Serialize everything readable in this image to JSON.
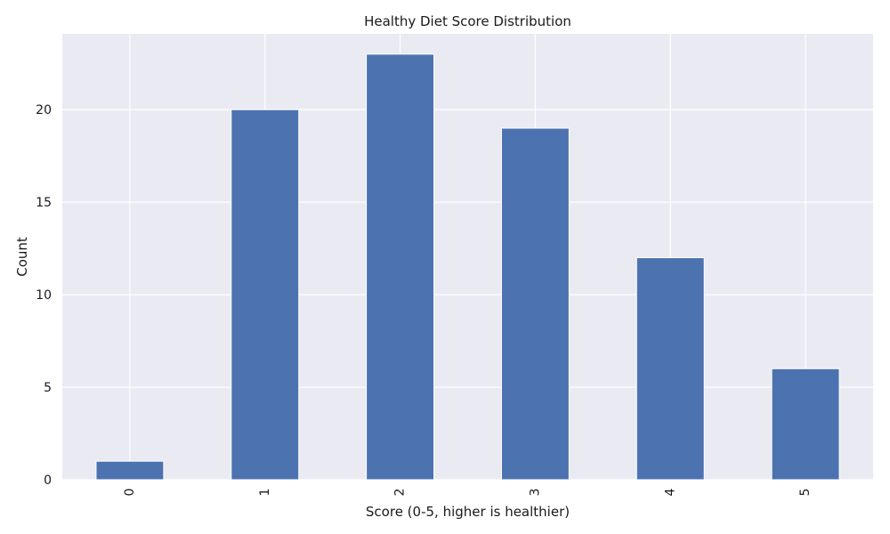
{
  "chart_data": {
    "type": "bar",
    "title": "Healthy Diet Score Distribution",
    "xlabel": "Score (0-5, higher is healthier)",
    "ylabel": "Count",
    "categories": [
      "0",
      "1",
      "2",
      "3",
      "4",
      "5"
    ],
    "values": [
      1,
      20,
      23,
      19,
      12,
      6
    ],
    "ylim": [
      0,
      24.1
    ],
    "yticks": [
      0,
      5,
      10,
      15,
      20
    ],
    "grid": true,
    "colors": {
      "bar": "#4c72b0",
      "plot_background": "#eaeaf2",
      "grid": "#ffffff"
    }
  }
}
